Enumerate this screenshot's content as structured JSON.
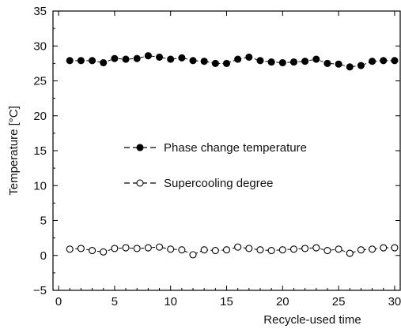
{
  "chart_data": {
    "type": "scatter",
    "xlabel": "Recycle-used time",
    "ylabel": "Temperature [°C]",
    "xlim": [
      -0.5,
      30.5
    ],
    "ylim": [
      -5,
      35
    ],
    "x_ticks": [
      0,
      5,
      10,
      15,
      20,
      25,
      30
    ],
    "y_ticks": [
      -5,
      0,
      5,
      10,
      15,
      20,
      25,
      30,
      35
    ],
    "x_tick_labels": [
      "0",
      "5",
      "10",
      "15",
      "20",
      "25",
      "30"
    ],
    "y_tick_labels": [
      "−5",
      "0",
      "5",
      "10",
      "15",
      "20",
      "25",
      "30",
      "35"
    ],
    "grid": false,
    "legend_position": "center-left",
    "x": [
      1,
      2,
      3,
      4,
      5,
      6,
      7,
      8,
      9,
      10,
      11,
      12,
      13,
      14,
      15,
      16,
      17,
      18,
      19,
      20,
      21,
      22,
      23,
      24,
      25,
      26,
      27,
      28,
      29,
      30
    ],
    "series": [
      {
        "name": "Phase change temperature",
        "marker": "filled-circle",
        "line_style": "dashed",
        "color": "#000000",
        "values": [
          27.9,
          27.9,
          27.9,
          27.6,
          28.2,
          28.1,
          28.2,
          28.6,
          28.4,
          28.1,
          28.3,
          27.9,
          27.8,
          27.5,
          27.5,
          28.1,
          28.4,
          27.9,
          27.7,
          27.6,
          27.7,
          27.8,
          28.1,
          27.5,
          27.4,
          27.0,
          27.2,
          27.8,
          27.9,
          27.9
        ]
      },
      {
        "name": "Supercooling degree",
        "marker": "open-circle",
        "line_style": "dashed",
        "color": "#000000",
        "values": [
          0.9,
          1.0,
          0.7,
          0.5,
          1.0,
          1.1,
          1.0,
          1.1,
          1.2,
          0.9,
          0.8,
          0.1,
          0.8,
          0.7,
          0.8,
          1.2,
          1.0,
          0.8,
          0.7,
          0.8,
          0.9,
          1.0,
          1.1,
          0.7,
          0.9,
          0.3,
          0.8,
          0.9,
          1.1,
          1.1
        ]
      }
    ]
  }
}
